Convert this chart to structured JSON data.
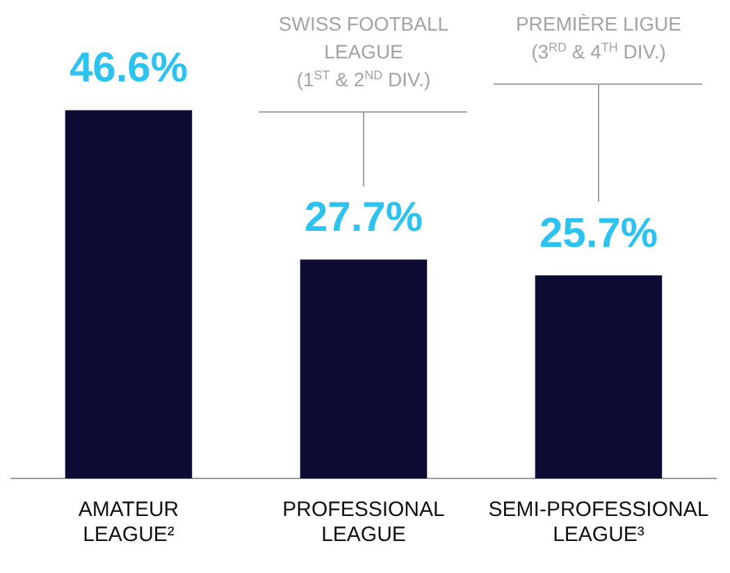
{
  "chart_data": {
    "type": "bar",
    "categories": [
      "AMATEUR LEAGUE²",
      "PROFESSIONAL LEAGUE",
      "SEMI-PROFESSIONAL LEAGUE³"
    ],
    "values": [
      46.6,
      27.7,
      25.7
    ],
    "value_labels": [
      "46.6%",
      "27.7%",
      "25.7%"
    ],
    "color": "#0b0b33",
    "grid": false,
    "legend": false,
    "annotations": [
      "SWISS FOOTBALL LEAGUE (1$^{ST}$ & 2$^{ND}$ DIV.)",
      "PREMIÈRE LIGUE (3$^{RD}$ & 4$^{TH}$ DIV.)"
    ]
  }
}
